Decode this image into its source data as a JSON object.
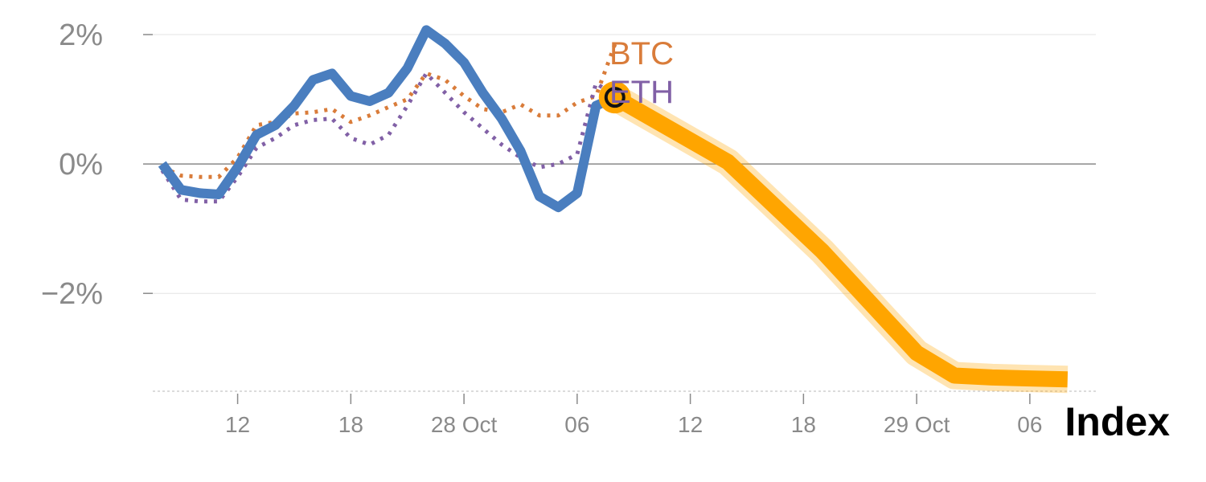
{
  "chart_data": {
    "type": "line",
    "title": "Index",
    "y_tick_labels": [
      "2%",
      "0%",
      "−2%"
    ],
    "y_ticks": [
      2,
      0,
      -2
    ],
    "ylim": [
      -3.5,
      2.1
    ],
    "x_tick_labels": [
      "12",
      "18",
      "28 Oct",
      "06",
      "12",
      "18",
      "29 Oct",
      "06"
    ],
    "x_tick_positions": [
      4,
      10,
      16,
      22,
      28,
      34,
      40,
      46
    ],
    "xlim": [
      -0.5,
      49.5
    ],
    "grid": "horizontal",
    "series": [
      {
        "name": "Index",
        "style": "solid",
        "color": "#4a7ebf",
        "x": [
          0,
          1,
          2,
          3,
          4,
          5,
          6,
          7,
          8,
          9,
          10,
          11,
          12,
          13,
          14,
          15,
          16,
          17,
          18,
          19,
          20,
          21,
          22,
          23,
          24
        ],
        "y": [
          0.0,
          -0.4,
          -0.45,
          -0.47,
          -0.05,
          0.45,
          0.6,
          0.9,
          1.3,
          1.4,
          1.05,
          0.97,
          1.1,
          1.48,
          2.07,
          1.86,
          1.57,
          1.1,
          0.7,
          0.2,
          -0.5,
          -0.67,
          -0.45,
          0.9,
          1.03
        ]
      },
      {
        "name": "BTC",
        "style": "dotted",
        "color": "#d97c3a",
        "x": [
          0,
          1,
          2,
          3,
          4,
          5,
          6,
          7,
          8,
          9,
          10,
          11,
          12,
          13,
          14,
          15,
          16,
          17,
          18,
          19,
          20,
          21,
          22,
          23,
          24
        ],
        "y": [
          -0.05,
          -0.18,
          -0.2,
          -0.2,
          0.1,
          0.6,
          0.65,
          0.78,
          0.8,
          0.85,
          0.65,
          0.75,
          0.88,
          1.0,
          1.4,
          1.3,
          1.05,
          0.85,
          0.8,
          0.92,
          0.75,
          0.75,
          0.95,
          1.05,
          1.85
        ]
      },
      {
        "name": "ETH",
        "style": "dotted",
        "color": "#8160a6",
        "x": [
          0,
          1,
          2,
          3,
          4,
          5,
          6,
          7,
          8,
          9,
          10,
          11,
          12,
          13,
          14,
          15,
          16,
          17,
          18,
          19,
          20,
          21,
          22,
          23,
          24
        ],
        "y": [
          -0.1,
          -0.55,
          -0.58,
          -0.58,
          -0.2,
          0.25,
          0.4,
          0.6,
          0.68,
          0.7,
          0.4,
          0.3,
          0.45,
          0.9,
          1.4,
          1.1,
          0.8,
          0.55,
          0.3,
          0.1,
          -0.05,
          0.0,
          0.15,
          1.25,
          1.05
        ]
      },
      {
        "name": "",
        "style": "highlight",
        "color": "#ffa500",
        "x": [
          24,
          30,
          35,
          40,
          42,
          44,
          48
        ],
        "y": [
          1.03,
          0.03,
          -1.35,
          -2.92,
          -3.27,
          -3.3,
          -3.33
        ]
      }
    ],
    "marker": {
      "x": 24,
      "y": 1.03,
      "color": "#ffa500"
    }
  }
}
